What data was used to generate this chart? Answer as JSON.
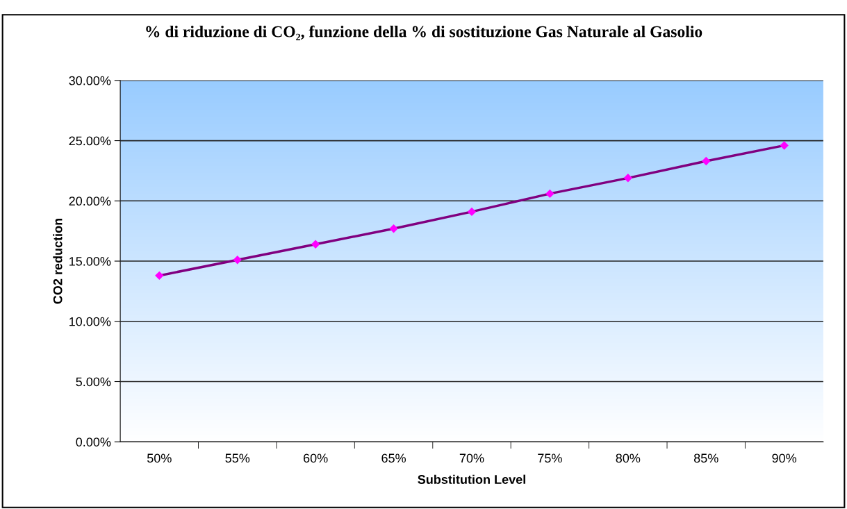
{
  "chart_data": {
    "type": "line",
    "title": "% di riduzione di CO₂, funzione della % di sostituzione Gas Naturale al Gasolio",
    "xlabel": "Substitution Level",
    "ylabel": "CO2 reduction",
    "categories": [
      "50%",
      "55%",
      "60%",
      "65%",
      "70%",
      "75%",
      "80%",
      "85%",
      "90%"
    ],
    "series": [
      {
        "color": "#800080",
        "colors": [
          "#ff00ff",
          "#ff00ff",
          "#ff00ff",
          "#ff00ff",
          "#ff00ff",
          "#ff00ff",
          "#ff00ff",
          "#ff00ff",
          "#ff00ff"
        ],
        "values": [
          13.8,
          15.1,
          16.4,
          17.7,
          19.1,
          20.6,
          21.9,
          23.3,
          24.6
        ]
      }
    ],
    "ylim": [
      0,
      30
    ],
    "yticks": [
      {
        "value": 0,
        "label": "0.00%"
      },
      {
        "value": 5,
        "label": "5.00%"
      },
      {
        "value": 10,
        "label": "10.00%"
      },
      {
        "value": 15,
        "label": "15.00%"
      },
      {
        "value": 20,
        "label": "20.00%"
      },
      {
        "value": 25,
        "label": "25.00%"
      },
      {
        "value": 30,
        "label": "30.00%"
      }
    ],
    "grid": "y",
    "marker": "diamond",
    "line_style": "solid"
  }
}
